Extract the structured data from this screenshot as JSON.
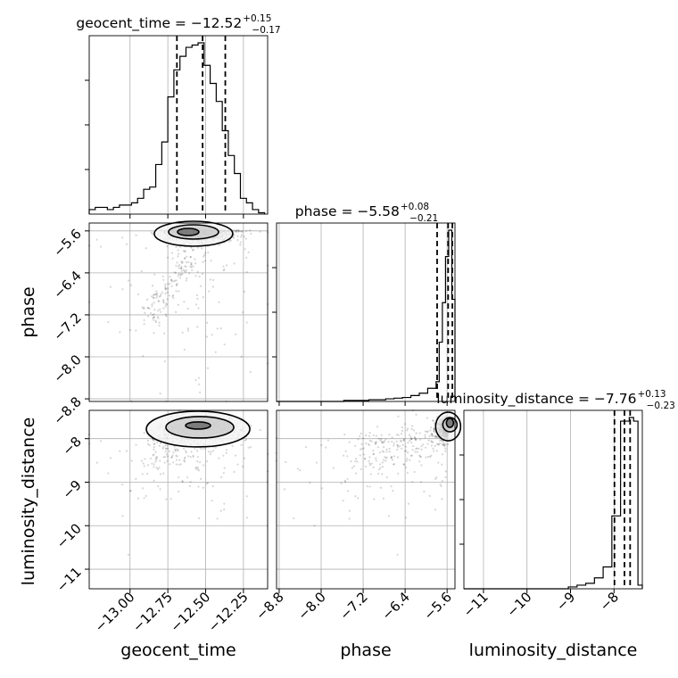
{
  "chart_data": {
    "type": "corner",
    "parameters": [
      "geocent_time",
      "phase",
      "luminosity_distance"
    ],
    "titles": [
      {
        "label": "geocent_time = −12.52",
        "plus": "+0.15",
        "minus": "−0.17"
      },
      {
        "label": "phase = −5.58",
        "plus": "+0.08",
        "minus": "−0.21"
      },
      {
        "label": "luminosity_distance = −7.76",
        "plus": "+0.13",
        "minus": "−0.23"
      }
    ],
    "ranges": {
      "geocent_time": [
        -13.27,
        -12.09
      ],
      "phase": [
        -8.85,
        -5.45
      ],
      "luminosity_distance": [
        -11.45,
        -7.35
      ]
    },
    "ticks": {
      "geocent_time": [
        -13.0,
        -12.75,
        -12.5,
        -12.25
      ],
      "phase": [
        -8.8,
        -8.0,
        -7.2,
        -6.4,
        -5.6
      ],
      "luminosity_distance": [
        -11,
        -10,
        -9,
        -8
      ]
    },
    "tick_labels": {
      "geocent_time": [
        "−13.00",
        "−12.75",
        "−12.50",
        "−12.25"
      ],
      "phase": [
        "−8.8",
        "−8.0",
        "−7.2",
        "−6.4",
        "−5.6"
      ],
      "luminosity_distance": [
        "−11",
        "−10",
        "−9",
        "−8"
      ]
    },
    "quantiles": {
      "geocent_time": [
        -12.69,
        -12.52,
        -12.37
      ],
      "phase": [
        -5.79,
        -5.58,
        -5.5
      ],
      "luminosity_distance": [
        -7.99,
        -7.76,
        -7.63
      ]
    },
    "histograms": {
      "geocent_time": {
        "edges": [
          -13.27,
          -13.23,
          -13.19,
          -13.15,
          -13.11,
          -13.07,
          -13.03,
          -12.99,
          -12.95,
          -12.91,
          -12.87,
          -12.83,
          -12.79,
          -12.75,
          -12.71,
          -12.67,
          -12.63,
          -12.59,
          -12.55,
          -12.51,
          -12.47,
          -12.43,
          -12.39,
          -12.35,
          -12.31,
          -12.27,
          -12.23,
          -12.19,
          -12.15,
          -12.11
        ],
        "counts": [
          1,
          1.5,
          1.5,
          1,
          1.5,
          2,
          2,
          2.5,
          3.5,
          5.5,
          6,
          11,
          16,
          26,
          32,
          35,
          37,
          37.5,
          38,
          33,
          29,
          25,
          18.5,
          13,
          9,
          3.5,
          2.5,
          1,
          0.3
        ]
      },
      "phase": {
        "edges": [
          -8.85,
          -8.69,
          -8.53,
          -8.37,
          -8.21,
          -8.05,
          -7.89,
          -7.73,
          -7.57,
          -7.41,
          -7.25,
          -7.09,
          -6.93,
          -6.77,
          -6.61,
          -6.45,
          -6.29,
          -6.13,
          -5.97,
          -5.81,
          -5.75,
          -5.69,
          -5.63,
          -5.57,
          -5.51,
          -5.45
        ],
        "counts": [
          0,
          0,
          0,
          0,
          0,
          0,
          0,
          0,
          0.3,
          0.3,
          0.3,
          0.5,
          0.5,
          0.8,
          1,
          1.2,
          1.8,
          2.5,
          4,
          6,
          18,
          30,
          44,
          52,
          31
        ]
      },
      "luminosity_distance": {
        "edges": [
          -11.45,
          -11.25,
          -11.05,
          -10.85,
          -10.65,
          -10.45,
          -10.25,
          -10.05,
          -9.85,
          -9.65,
          -9.45,
          -9.25,
          -9.05,
          -8.85,
          -8.65,
          -8.45,
          -8.25,
          -8.05,
          -7.85,
          -7.65,
          -7.55,
          -7.45,
          -7.35
        ],
        "counts": [
          0,
          0,
          0,
          0,
          0,
          0,
          0,
          0,
          0,
          0,
          0,
          0,
          0.5,
          1,
          1.5,
          3,
          6,
          20,
          46,
          47,
          46,
          1
        ]
      }
    },
    "grid": true,
    "legend": "none"
  }
}
